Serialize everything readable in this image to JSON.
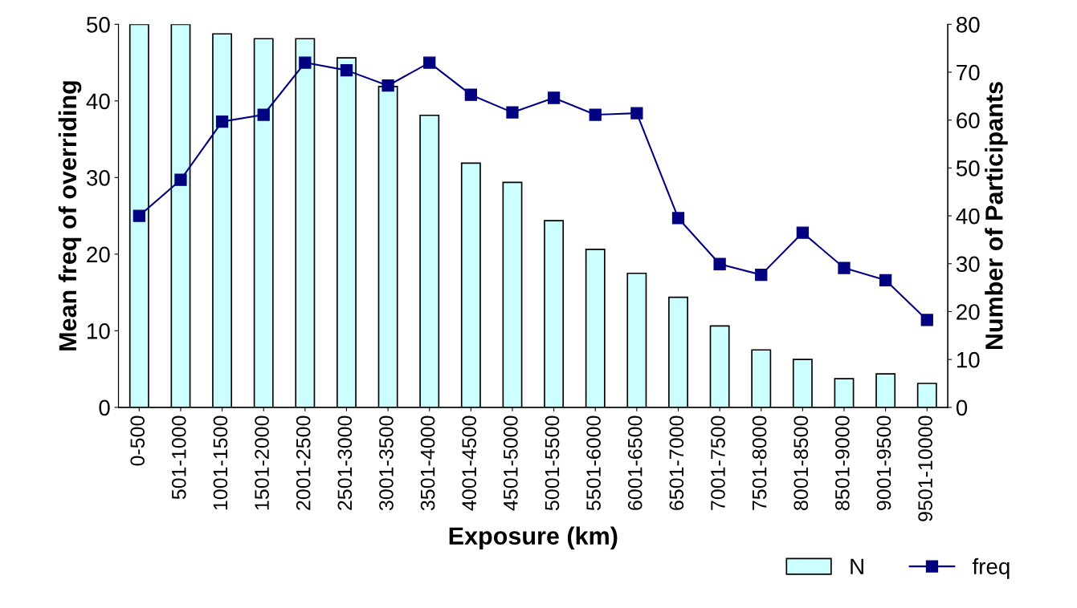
{
  "chart_data": {
    "type": "bar",
    "xlabel": "Exposure (km)",
    "ylabel": "Mean freq of overriding",
    "y2label": "Number of Participants",
    "categories": [
      "0-500",
      "501-1000",
      "1001-1500",
      "1501-2000",
      "2001-2500",
      "2501-3000",
      "3001-3500",
      "3501-4000",
      "4001-4500",
      "4501-5000",
      "5001-5500",
      "5501-6000",
      "6001-6500",
      "6501-7000",
      "7001-7500",
      "7501-8000",
      "8001-8500",
      "8501-9000",
      "9001-9500",
      "9501-10000"
    ],
    "series": [
      {
        "name": "N",
        "axis": "y2",
        "color": "#ccffff",
        "values": [
          80,
          80,
          78,
          77,
          77,
          73,
          67,
          61,
          51,
          47,
          39,
          33,
          28,
          23,
          17,
          12,
          10,
          6,
          7,
          5
        ]
      },
      {
        "name": "freq",
        "type": "line",
        "axis": "y",
        "color": "#000080",
        "marker": "square",
        "line_style": "solid",
        "values": [
          25,
          29.7,
          37.3,
          38.2,
          45,
          44,
          42,
          45,
          40.8,
          38.5,
          40.4,
          38.2,
          38.4,
          24.7,
          18.7,
          17.3,
          22.8,
          18.2,
          16.6,
          11.4
        ]
      }
    ],
    "ylim": [
      0,
      50
    ],
    "yticks": [
      0,
      10,
      20,
      30,
      40,
      50
    ],
    "y2lim": [
      0,
      80
    ],
    "y2ticks": [
      0,
      10,
      20,
      30,
      40,
      50,
      60,
      70,
      80
    ],
    "grid": false,
    "legend": "bottom right"
  }
}
